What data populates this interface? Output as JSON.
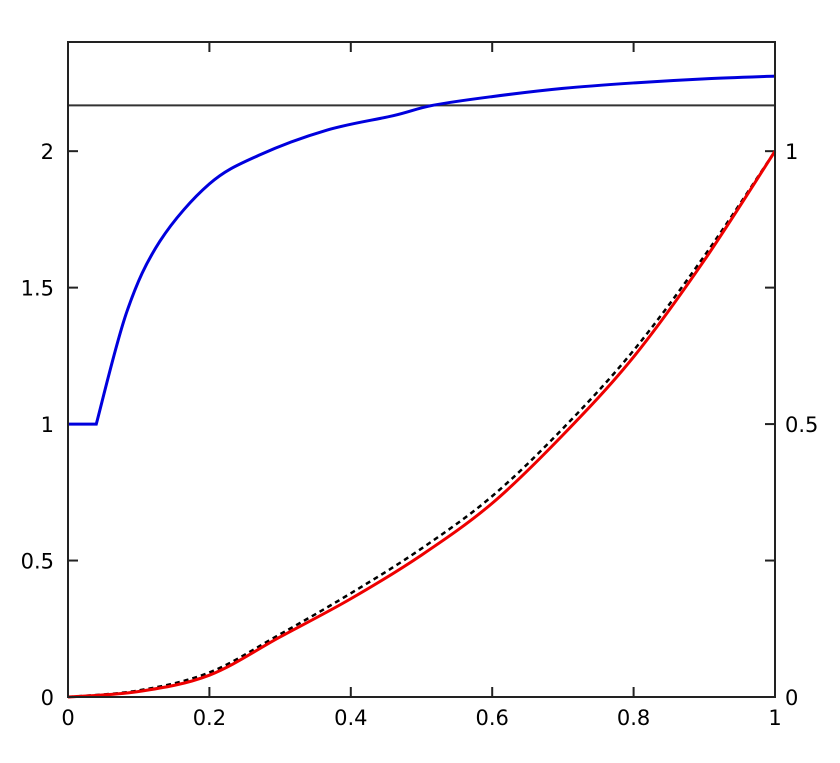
{
  "chart_data": {
    "type": "line",
    "title": "",
    "xlabel": "",
    "ylabel": "",
    "y2label": "",
    "xlim": [
      0,
      1
    ],
    "ylim": [
      0,
      2.4
    ],
    "y2lim": [
      0,
      1.2
    ],
    "grid": false,
    "x_ticks": [
      "0",
      "0.2",
      "0.4",
      "0.6",
      "0.8",
      "1"
    ],
    "y_ticks": [
      "0",
      "0.5",
      "1",
      "1.5",
      "2"
    ],
    "y2_ticks": [
      "0",
      "0.5",
      "1"
    ],
    "hline": {
      "y": 2.168,
      "color": "#333333",
      "axis": "left"
    },
    "series": [
      {
        "axis": "left",
        "color": "#0000dd",
        "style": "solid",
        "x": [
          0,
          0.04,
          0.083,
          0.13,
          0.2,
          0.27,
          0.366,
          0.46,
          0.516,
          0.6,
          0.7,
          0.8,
          0.9,
          1.0
        ],
        "y": [
          1,
          1,
          1.41,
          1.67,
          1.88,
          1.985,
          2.077,
          2.13,
          2.168,
          2.2,
          2.23,
          2.25,
          2.265,
          2.275
        ]
      },
      {
        "axis": "right",
        "color": "#000000",
        "style": "dashed",
        "x": [
          0,
          0.1,
          0.2,
          0.3,
          0.4,
          0.5,
          0.6,
          0.7,
          0.8,
          0.9,
          1.0
        ],
        "y": [
          0,
          0.012,
          0.045,
          0.115,
          0.19,
          0.272,
          0.368,
          0.492,
          0.635,
          0.808,
          1.0
        ]
      },
      {
        "axis": "right",
        "color": "#ee0000",
        "style": "solid",
        "x": [
          0,
          0.1,
          0.2,
          0.3,
          0.4,
          0.5,
          0.6,
          0.7,
          0.8,
          0.9,
          1.0
        ],
        "y": [
          0,
          0.01,
          0.04,
          0.11,
          0.18,
          0.26,
          0.355,
          0.48,
          0.623,
          0.8,
          1.0
        ]
      }
    ]
  }
}
